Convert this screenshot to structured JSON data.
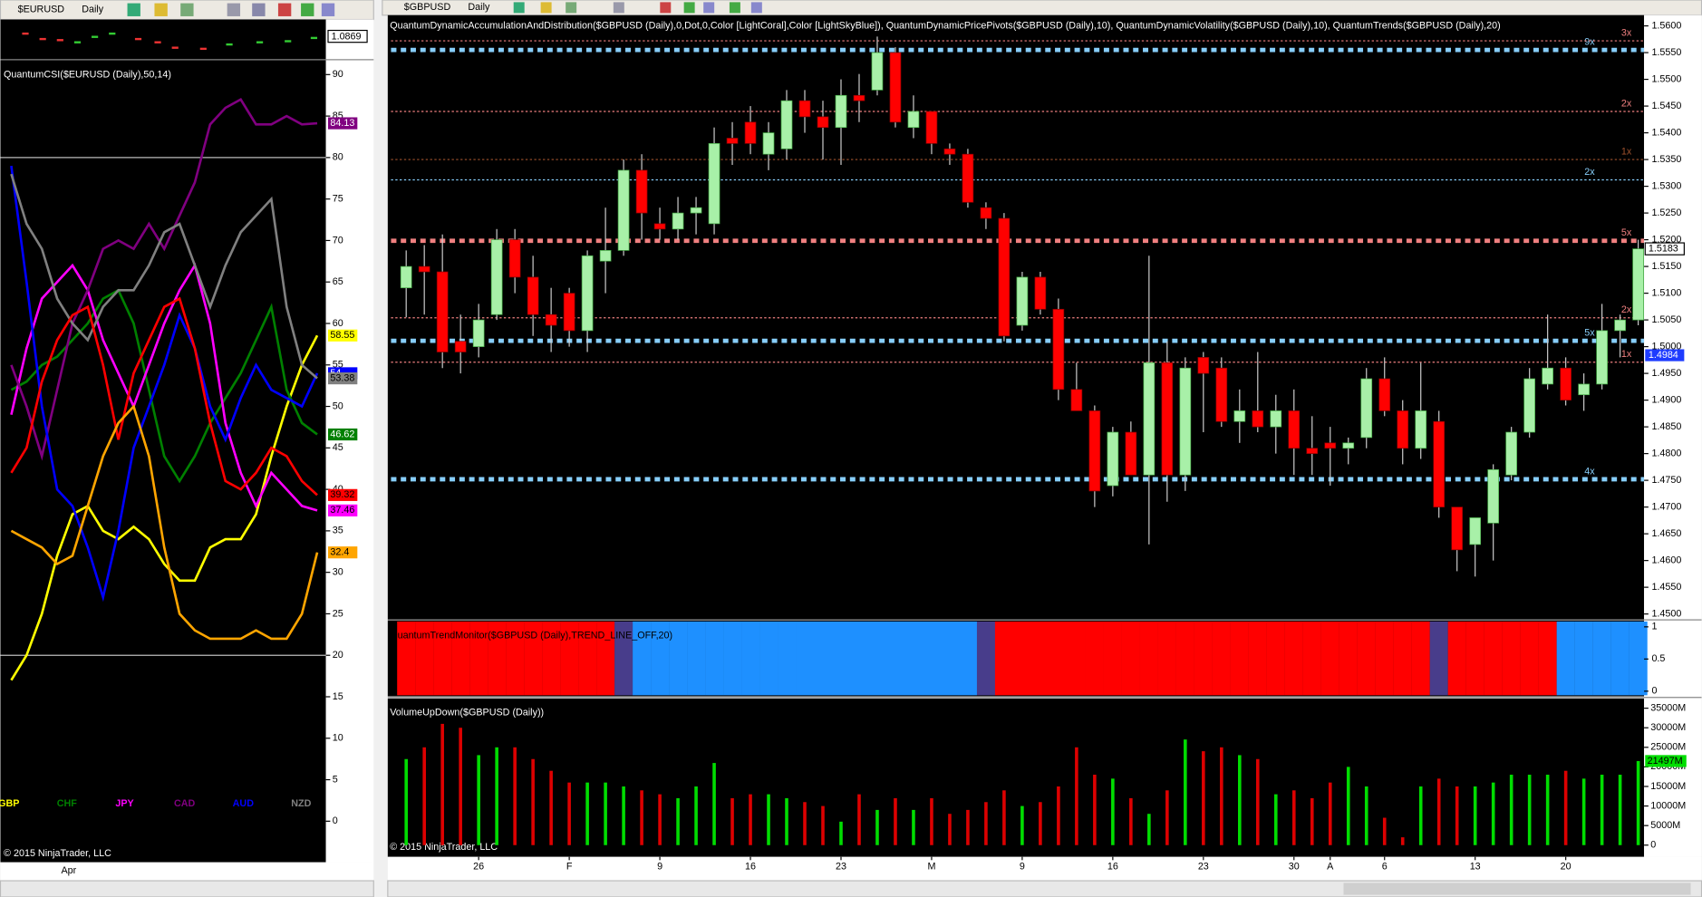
{
  "left_window": {
    "instrument": "$EURUSD",
    "interval": "Daily",
    "last_price": "1.0869"
  },
  "right_window": {
    "instrument": "$GBPUSD",
    "interval": "Daily"
  },
  "chart_data": [
    {
      "type": "line",
      "title": "QuantumCSI($EURUSD (Daily),50,14)",
      "x_label": "Apr",
      "copyright": "© 2015 NinjaTrader, LLC",
      "ylim": [
        -4.3,
        91.8
      ],
      "yticks": [
        0,
        5,
        10,
        15,
        20,
        25,
        30,
        35,
        40,
        45,
        50,
        55,
        60,
        65,
        70,
        75,
        80,
        85,
        90
      ],
      "levels": [
        20,
        80
      ],
      "series": [
        {
          "name": "GBP",
          "color": "#ffff00",
          "values": [
            17,
            20,
            25,
            32,
            37,
            38,
            35,
            34,
            35.5,
            34,
            31,
            29,
            29,
            33,
            34,
            34,
            37,
            44,
            50,
            55,
            58.55
          ]
        },
        {
          "name": "CHF",
          "color": "#008000",
          "values": [
            52,
            53,
            55,
            56,
            58,
            60,
            63,
            64,
            60,
            52,
            44,
            41,
            44,
            48,
            51,
            54,
            58,
            62,
            52,
            48,
            46.62
          ]
        },
        {
          "name": "JPY",
          "color": "#ff00ff",
          "values": [
            49,
            57,
            63,
            65,
            67,
            64,
            58,
            54,
            50,
            55,
            60,
            64,
            67,
            60,
            48,
            42,
            38,
            42,
            40,
            38,
            37.46
          ]
        },
        {
          "name": "CAD",
          "color": "#800080",
          "values": [
            55,
            50,
            44,
            52,
            60,
            64,
            69,
            70,
            69,
            72,
            69,
            73,
            77,
            84,
            86,
            87,
            84,
            84,
            85,
            84,
            84.13
          ]
        },
        {
          "name": "AUD",
          "color": "#0000ff",
          "values": [
            79,
            65,
            50,
            40,
            38,
            33,
            27,
            35,
            45,
            50,
            55,
            61,
            57,
            50,
            46,
            51,
            55,
            52,
            51,
            50,
            54
          ]
        },
        {
          "name": "NZD",
          "color": "#808080",
          "values": [
            78,
            72,
            69,
            63,
            60,
            58,
            62,
            64,
            64,
            67,
            71,
            72,
            67,
            62,
            67,
            71,
            73,
            75,
            62,
            55,
            53.38
          ]
        },
        {
          "color": "#ff0000",
          "values": [
            42,
            45,
            53,
            58,
            61,
            62,
            55,
            46,
            54,
            58,
            62,
            63,
            57,
            48,
            41,
            40,
            42,
            45,
            44,
            41,
            39.32
          ]
        },
        {
          "color": "#ffa500",
          "values": [
            35,
            34,
            33,
            31,
            32,
            38,
            44,
            48,
            50,
            44,
            33,
            25,
            23,
            22,
            22,
            22,
            23,
            22,
            22,
            25,
            32.4
          ]
        }
      ]
    },
    {
      "type": "candlestick",
      "title": "QuantumDynamicAccumulationAndDistribution($GBPUSD (Daily),0,Dot,0,Color [LightCoral],Color [LightSkyBlue]), QuantumDynamicPricePivots($GBPUSD (Daily),10), QuantumDynamicVolatility($GBPUSD (Daily),10), QuantumTrends($GBPUSD (Daily),20)",
      "copyright": "© 2015 NinjaTrader, LLC",
      "up_color": "#a8f0a8",
      "down_color": "#ff0000",
      "categories": [
        null,
        null,
        null,
        null,
        "26",
        null,
        null,
        null,
        null,
        "F",
        null,
        null,
        null,
        null,
        "9",
        null,
        null,
        null,
        null,
        "16",
        null,
        null,
        null,
        null,
        "23",
        null,
        null,
        null,
        null,
        "M",
        null,
        null,
        null,
        null,
        "9",
        null,
        null,
        null,
        null,
        "16",
        null,
        null,
        null,
        null,
        "23",
        null,
        null,
        null,
        null,
        "30",
        null,
        "A",
        null,
        null,
        "6",
        null,
        null,
        null,
        null,
        "13",
        null,
        null,
        null,
        null,
        "20",
        null,
        null,
        null,
        null
      ],
      "open": [
        1.511,
        1.515,
        1.514,
        1.501,
        1.5,
        1.506,
        1.52,
        1.513,
        1.506,
        1.51,
        1.503,
        1.516,
        1.518,
        1.533,
        1.523,
        1.522,
        1.525,
        1.523,
        1.539,
        1.542,
        1.536,
        1.537,
        1.546,
        1.543,
        1.541,
        1.547,
        1.548,
        1.555,
        1.541,
        1.544,
        1.537,
        1.536,
        1.526,
        1.524,
        1.504,
        1.513,
        1.507,
        1.492,
        1.488,
        1.474,
        1.484,
        1.476,
        1.497,
        1.476,
        1.498,
        1.496,
        1.486,
        1.488,
        1.485,
        1.488,
        1.481,
        1.482,
        1.481,
        1.483,
        1.494,
        1.488,
        1.481,
        1.486,
        1.47,
        1.463,
        1.467,
        1.476,
        1.484,
        1.493,
        1.496,
        1.491,
        1.493,
        1.503,
        1.505
      ],
      "high": [
        1.518,
        1.519,
        1.521,
        1.506,
        1.508,
        1.522,
        1.522,
        1.517,
        1.511,
        1.511,
        1.518,
        1.526,
        1.535,
        1.536,
        1.526,
        1.528,
        1.528,
        1.541,
        1.542,
        1.545,
        1.542,
        1.548,
        1.548,
        1.546,
        1.55,
        1.551,
        1.558,
        1.556,
        1.547,
        1.544,
        1.538,
        1.537,
        1.527,
        1.525,
        1.514,
        1.514,
        1.509,
        1.497,
        1.489,
        1.485,
        1.486,
        1.517,
        1.501,
        1.498,
        1.499,
        1.498,
        1.492,
        1.499,
        1.491,
        1.492,
        1.487,
        1.485,
        1.483,
        1.496,
        1.498,
        1.49,
        1.497,
        1.488,
        1.47,
        1.468,
        1.478,
        1.485,
        1.496,
        1.506,
        1.498,
        1.495,
        1.508,
        1.506,
        1.52
      ],
      "low": [
        1.5055,
        1.506,
        1.496,
        1.495,
        1.498,
        1.505,
        1.51,
        1.502,
        1.499,
        1.5,
        1.499,
        1.51,
        1.517,
        1.52,
        1.52,
        1.52,
        1.521,
        1.521,
        1.534,
        1.536,
        1.533,
        1.535,
        1.54,
        1.535,
        1.534,
        1.542,
        1.547,
        1.541,
        1.539,
        1.536,
        1.534,
        1.526,
        1.522,
        1.501,
        1.503,
        1.506,
        1.49,
        1.488,
        1.47,
        1.472,
        1.476,
        1.463,
        1.471,
        1.473,
        1.484,
        1.485,
        1.482,
        1.484,
        1.48,
        1.476,
        1.476,
        1.474,
        1.478,
        1.481,
        1.487,
        1.478,
        1.479,
        1.468,
        1.458,
        1.457,
        1.46,
        1.475,
        1.483,
        1.492,
        1.489,
        1.488,
        1.492,
        1.498,
        1.504
      ],
      "close": [
        1.515,
        1.514,
        1.499,
        1.499,
        1.505,
        1.52,
        1.513,
        1.506,
        1.504,
        1.503,
        1.517,
        1.518,
        1.533,
        1.525,
        1.522,
        1.525,
        1.526,
        1.538,
        1.538,
        1.538,
        1.54,
        1.546,
        1.543,
        1.541,
        1.547,
        1.546,
        1.555,
        1.542,
        1.544,
        1.538,
        1.536,
        1.527,
        1.524,
        1.502,
        1.513,
        1.507,
        1.492,
        1.488,
        1.473,
        1.484,
        1.476,
        1.497,
        1.476,
        1.496,
        1.495,
        1.486,
        1.488,
        1.485,
        1.488,
        1.481,
        1.48,
        1.481,
        1.482,
        1.494,
        1.488,
        1.481,
        1.488,
        1.47,
        1.462,
        1.468,
        1.477,
        1.484,
        1.494,
        1.496,
        1.49,
        1.493,
        1.503,
        1.505,
        1.5183
      ],
      "ylim": [
        1.449,
        1.562
      ],
      "yticks": [
        {
          "value": 1.45,
          "label": "1.4500"
        },
        {
          "value": 1.455,
          "label": "1.4550"
        },
        {
          "value": 1.46,
          "label": "1.4600"
        },
        {
          "value": 1.465,
          "label": "1.4650"
        },
        {
          "value": 1.47,
          "label": "1.4700"
        },
        {
          "value": 1.475,
          "label": "1.4750"
        },
        {
          "value": 1.48,
          "label": "1.4800"
        },
        {
          "value": 1.485,
          "label": "1.4850"
        },
        {
          "value": 1.49,
          "label": "1.4900"
        },
        {
          "value": 1.495,
          "label": "1.4950"
        },
        {
          "value": 1.5,
          "label": "1.5000"
        },
        {
          "value": 1.505,
          "label": "1.5050"
        },
        {
          "value": 1.51,
          "label": "1.5100"
        },
        {
          "value": 1.515,
          "label": "1.5150"
        },
        {
          "value": 1.52,
          "label": "1.5200"
        },
        {
          "value": 1.525,
          "label": "1.5250"
        },
        {
          "value": 1.53,
          "label": "1.5300"
        },
        {
          "value": 1.535,
          "label": "1.5350"
        },
        {
          "value": 1.54,
          "label": "1.5400"
        },
        {
          "value": 1.545,
          "label": "1.5450"
        },
        {
          "value": 1.55,
          "label": "1.5500"
        },
        {
          "value": 1.555,
          "label": "1.5550"
        },
        {
          "value": 1.56,
          "label": "1.5600"
        }
      ],
      "marker_price": 1.4984,
      "levels": [
        {
          "value": 1.5555,
          "color": "#87cefa",
          "style": "thick",
          "label": "9x"
        },
        {
          "value": 1.5572,
          "color": "#f08080",
          "style": "thin",
          "label": "3x"
        },
        {
          "value": 1.544,
          "color": "#f08080",
          "style": "thin",
          "label": "2x"
        },
        {
          "value": 1.535,
          "color": "#a0522d",
          "style": "thin",
          "label": "1x"
        },
        {
          "value": 1.5312,
          "color": "#87cefa",
          "style": "thin",
          "label": "2x"
        },
        {
          "value": 1.5198,
          "color": "#f08080",
          "style": "thick",
          "label": "5x"
        },
        {
          "value": 1.5054,
          "color": "#f08080",
          "style": "thin",
          "label": "2x"
        },
        {
          "value": 1.5011,
          "color": "#87cefa",
          "style": "thick",
          "label": "5x"
        },
        {
          "value": 1.4971,
          "color": "#f08080",
          "style": "thin",
          "label": "1x"
        },
        {
          "value": 1.4752,
          "color": "#87cefa",
          "style": "thick",
          "label": "4x"
        }
      ]
    },
    {
      "type": "band",
      "title": "QuantumTrendMonitor($GBPUSD (Daily),TREND_LINE_OFF,20)",
      "ylim": [
        -0.08,
        1.1
      ],
      "yticks": [
        0,
        0.5,
        1
      ],
      "state_colors": [
        "#ff0000",
        "#ff0000",
        "#ff0000",
        "#ff0000",
        "#ff0000",
        "#ff0000",
        "#ff0000",
        "#ff0000",
        "#ff0000",
        "#ff0000",
        "#ff0000",
        "#ff0000",
        "#483d8b",
        "#1e90ff",
        "#1e90ff",
        "#1e90ff",
        "#1e90ff",
        "#1e90ff",
        "#1e90ff",
        "#1e90ff",
        "#1e90ff",
        "#1e90ff",
        "#1e90ff",
        "#1e90ff",
        "#1e90ff",
        "#1e90ff",
        "#1e90ff",
        "#1e90ff",
        "#1e90ff",
        "#1e90ff",
        "#1e90ff",
        "#1e90ff",
        "#483d8b",
        "#ff0000",
        "#ff0000",
        "#ff0000",
        "#ff0000",
        "#ff0000",
        "#ff0000",
        "#ff0000",
        "#ff0000",
        "#ff0000",
        "#ff0000",
        "#ff0000",
        "#ff0000",
        "#ff0000",
        "#ff0000",
        "#ff0000",
        "#ff0000",
        "#ff0000",
        "#ff0000",
        "#ff0000",
        "#ff0000",
        "#ff0000",
        "#ff0000",
        "#ff0000",
        "#ff0000",
        "#483d8b",
        "#ff0000",
        "#ff0000",
        "#ff0000",
        "#ff0000",
        "#ff0000",
        "#ff0000",
        "#1e90ff",
        "#1e90ff",
        "#1e90ff",
        "#1e90ff",
        "#1e90ff"
      ]
    },
    {
      "type": "bar",
      "title": "VolumeUpDown($GBPUSD (Daily))",
      "copyright": "© 2015 NinjaTrader, LLC",
      "up_color": "#00dd00",
      "down_color": "#dd0000",
      "values": [
        22000,
        25000,
        31000,
        30000,
        23000,
        25000,
        25000,
        22000,
        19000,
        16000,
        16000,
        16000,
        15000,
        14000,
        13000,
        12000,
        15000,
        21000,
        12000,
        13000,
        13000,
        12000,
        11000,
        10000,
        6000,
        13000,
        9000,
        12000,
        9000,
        12000,
        8000,
        9000,
        11000,
        14000,
        10000,
        11000,
        15000,
        25000,
        18000,
        17000,
        12000,
        8000,
        14000,
        27000,
        24000,
        25000,
        23000,
        22000,
        13000,
        14000,
        12000,
        16000,
        20000,
        15000,
        7000,
        2000,
        15000,
        17000,
        15000,
        15000,
        16000,
        18000,
        18000,
        18000,
        19000,
        17000,
        18000,
        18000,
        21497
      ],
      "last_value_label": "21497M",
      "ylim": [
        -3000,
        37200
      ],
      "yticks": [
        {
          "value": 0,
          "label": "0"
        },
        {
          "value": 5000,
          "label": "5000M"
        },
        {
          "value": 10000,
          "label": "10000M"
        },
        {
          "value": 15000,
          "label": "15000M"
        },
        {
          "value": 20000,
          "label": "20000M"
        },
        {
          "value": 25000,
          "label": "25000M"
        },
        {
          "value": 30000,
          "label": "30000M"
        },
        {
          "value": 35000,
          "label": "35000M"
        }
      ]
    }
  ]
}
